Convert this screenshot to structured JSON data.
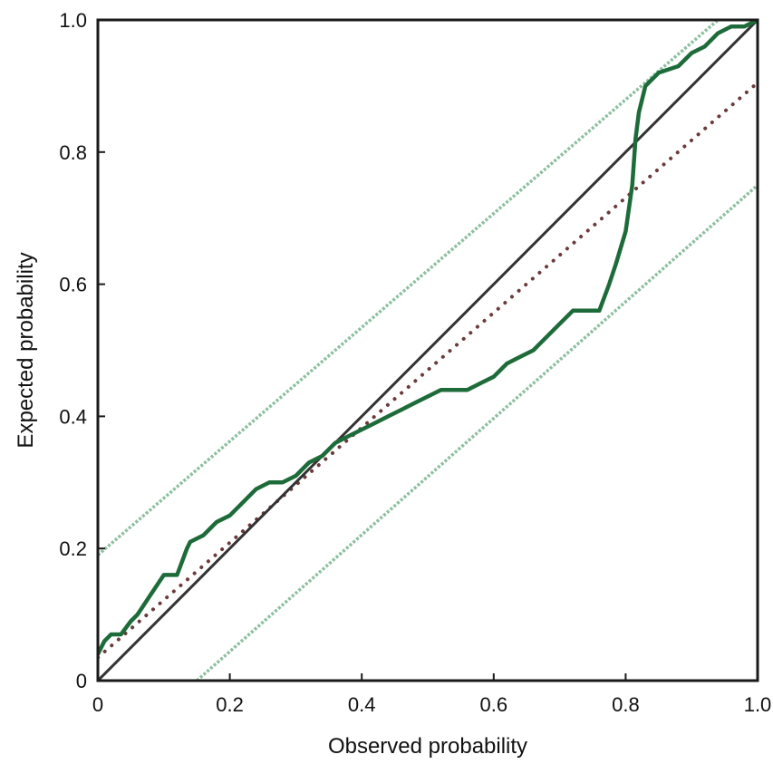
{
  "chart_data": {
    "type": "line",
    "title": "",
    "xlabel": "Observed probability",
    "ylabel": "Expected probability",
    "xlim": [
      0,
      1
    ],
    "ylim": [
      0,
      1
    ],
    "grid": false,
    "legend": "none",
    "x_ticks": [
      {
        "value": 0,
        "label": "0"
      },
      {
        "value": 0.2,
        "label": "0.2"
      },
      {
        "value": 0.4,
        "label": "0.4"
      },
      {
        "value": 0.6,
        "label": "0.6"
      },
      {
        "value": 0.8,
        "label": "0.8"
      },
      {
        "value": 1.0,
        "label": "1.0"
      }
    ],
    "y_ticks": [
      {
        "value": 0,
        "label": "0"
      },
      {
        "value": 0.2,
        "label": "0.2"
      },
      {
        "value": 0.4,
        "label": "0.4"
      },
      {
        "value": 0.6,
        "label": "0.6"
      },
      {
        "value": 0.8,
        "label": "0.8"
      },
      {
        "value": 1.0,
        "label": "1.0"
      }
    ],
    "series": [
      {
        "style": "solid-thick",
        "color": "#1e6b3a",
        "x": [
          0,
          0.01,
          0.02,
          0.035,
          0.05,
          0.06,
          0.08,
          0.1,
          0.12,
          0.135,
          0.14,
          0.16,
          0.18,
          0.2,
          0.22,
          0.24,
          0.26,
          0.28,
          0.3,
          0.32,
          0.34,
          0.36,
          0.38,
          0.4,
          0.42,
          0.44,
          0.46,
          0.48,
          0.5,
          0.52,
          0.54,
          0.56,
          0.58,
          0.6,
          0.62,
          0.64,
          0.66,
          0.68,
          0.7,
          0.72,
          0.74,
          0.76,
          0.775,
          0.785,
          0.8,
          0.81,
          0.815,
          0.82,
          0.83,
          0.85,
          0.88,
          0.9,
          0.92,
          0.94,
          0.96,
          0.98,
          1.0
        ],
        "y": [
          0.04,
          0.06,
          0.07,
          0.07,
          0.09,
          0.1,
          0.13,
          0.16,
          0.16,
          0.2,
          0.21,
          0.22,
          0.24,
          0.25,
          0.27,
          0.29,
          0.3,
          0.3,
          0.31,
          0.33,
          0.34,
          0.36,
          0.37,
          0.38,
          0.39,
          0.4,
          0.41,
          0.42,
          0.43,
          0.44,
          0.44,
          0.44,
          0.45,
          0.46,
          0.48,
          0.49,
          0.5,
          0.52,
          0.54,
          0.56,
          0.56,
          0.56,
          0.6,
          0.63,
          0.68,
          0.75,
          0.82,
          0.86,
          0.9,
          0.92,
          0.93,
          0.95,
          0.96,
          0.98,
          0.99,
          0.99,
          1.0
        ]
      },
      {
        "style": "solid",
        "color": "#333333",
        "x": [
          0,
          1
        ],
        "y": [
          0,
          1
        ]
      },
      {
        "style": "dotted",
        "color": "#6b3a3a",
        "x": [
          0,
          1
        ],
        "y": [
          0.035,
          0.905
        ]
      },
      {
        "style": "dashed-light",
        "color": "#8ec0a0",
        "x": [
          0,
          0.94
        ],
        "y": [
          0.19,
          1.0
        ]
      },
      {
        "style": "dashed-light",
        "color": "#8ec0a0",
        "x": [
          0.15,
          1
        ],
        "y": [
          0,
          0.75
        ]
      }
    ]
  }
}
